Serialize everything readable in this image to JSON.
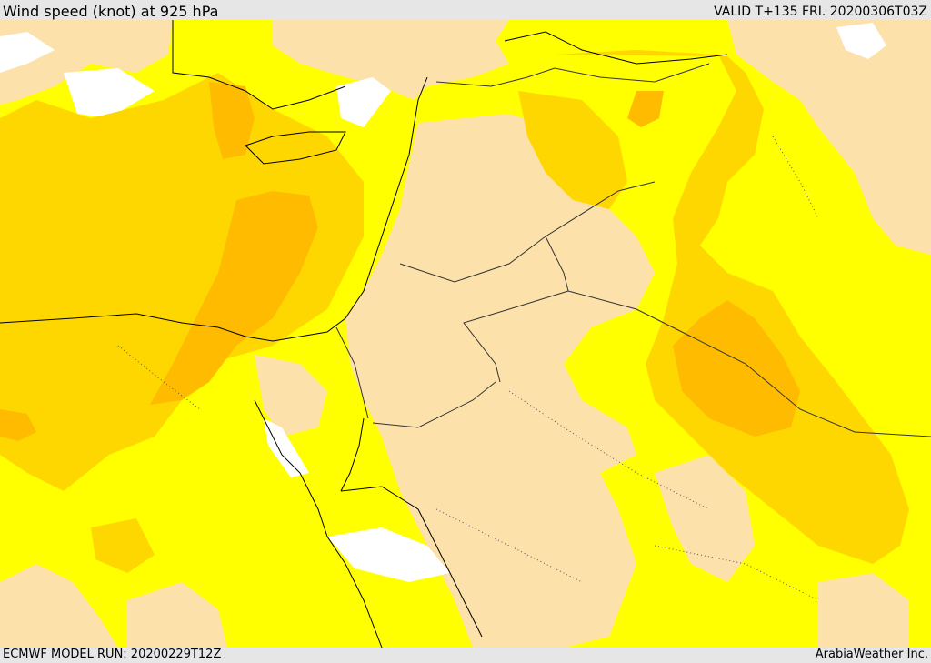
{
  "header": {
    "title": "Wind speed (knot) at 925 hPa",
    "valid": "VALID T+135 FRI. 20200306T03Z"
  },
  "footer": {
    "model_run": "ECMWF MODEL RUN: 20200229T12Z",
    "credit": "ArabiaWeather Inc."
  },
  "palette": {
    "band_lowest": "#ffffff",
    "band_low": "#fde1aa",
    "band_mid": "#ffff00",
    "band_high": "#ffd700",
    "band_higher": "#ffbb00",
    "band_highest": "#ffa500",
    "coastline": "#000000",
    "border": "#333333"
  }
}
